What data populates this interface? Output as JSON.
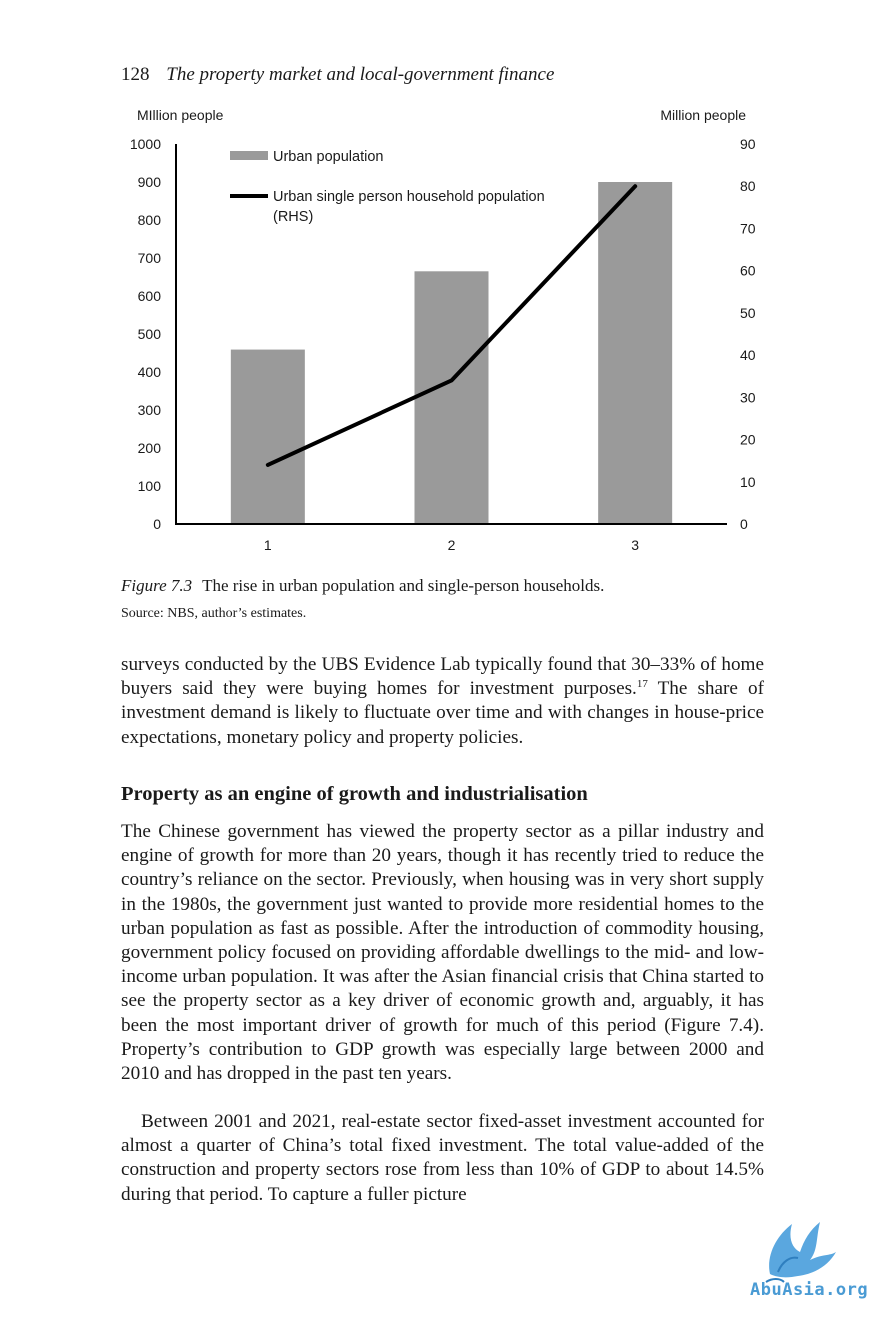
{
  "header": {
    "page_number": "128",
    "title": "The property market and local-government finance"
  },
  "chart_data": {
    "type": "bar+line",
    "categories": [
      "1",
      "2",
      "3"
    ],
    "series": [
      {
        "name": "Urban population",
        "kind": "bar",
        "axis": "left",
        "values": [
          459,
          665,
          900
        ]
      },
      {
        "name": "Urban single person household population (RHS)",
        "kind": "line",
        "axis": "right",
        "values": [
          14,
          34,
          80
        ]
      }
    ],
    "ylabel_left": "MIllion people",
    "ylabel_right": "Million people",
    "ylim_left": [
      0,
      1000
    ],
    "ylim_right": [
      0,
      90
    ],
    "yticks_left": [
      "0",
      "100",
      "200",
      "300",
      "400",
      "500",
      "600",
      "700",
      "800",
      "900",
      "1000"
    ],
    "yticks_right": [
      "0",
      "10",
      "20",
      "30",
      "40",
      "50",
      "60",
      "70",
      "80",
      "90"
    ],
    "legend_position": "top-left",
    "grid": false,
    "colors": {
      "bar": "#9a9a9a",
      "line": "#000000"
    }
  },
  "caption": {
    "label": "Figure 7.3",
    "text": "The rise in urban population and single-person households.",
    "source": "Source: NBS, author’s estimates."
  },
  "paragraph1": {
    "text": "surveys conducted by the UBS Evidence Lab typically found that 30–33% of home buyers said they were buying homes for investment purposes.",
    "footnote": "17",
    "text_after": " The share of investment demand is likely to fluctuate over time and with changes in house-price expectations, monetary policy and property policies."
  },
  "section_heading": "Property as an engine of growth and industrialisation",
  "paragraph2": "The Chinese government has viewed the property sector as a pillar industry and engine of growth for more than 20 years, though it has recently tried to reduce the country’s reliance on the sector. Previously, when housing was in very short supply in the 1980s, the government just wanted to provide more residential homes to the urban population as fast as possible. After the introduction of commodity housing, government policy focused on provid­ing affordable dwellings to the mid- and low-income urban population. It was after the Asian financial crisis that China started to see the property sector as a key driver of economic growth and, arguably, it has been the most important driver of growth for much of this period (Figure 7.4). Property’s contribution to GDP growth was especially large between 2000 and 2010 and has dropped in the past ten years.",
  "paragraph3": "Between 2001 and 2021, real-estate sector fixed-asset investment accounted for almost a quarter of China’s total fixed investment. The total value-added of the construction and property sectors rose from less than 10% of GDP to about 14.5% during that period. To capture a fuller picture",
  "watermark": {
    "text": "AbuAsia.org",
    "icon": "bird-logo-icon",
    "color": "#4a9bd4"
  }
}
